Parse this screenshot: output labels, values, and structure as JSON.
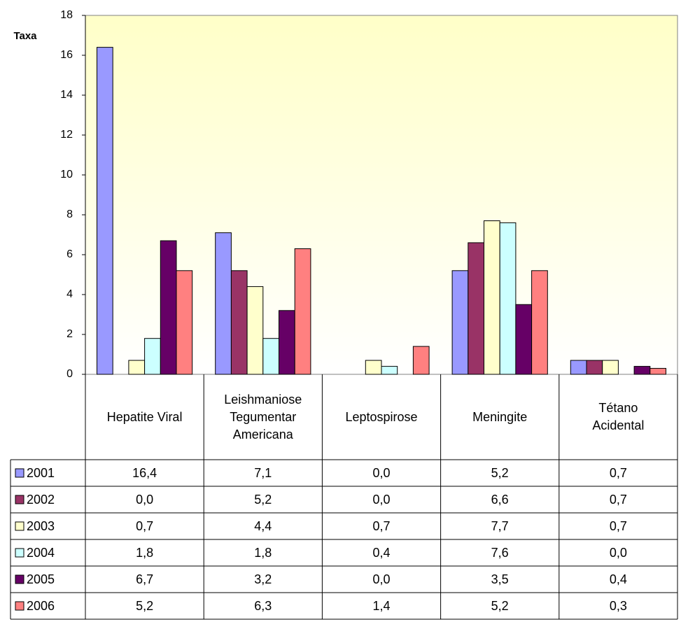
{
  "chart_data": {
    "type": "bar",
    "y_label": "Taxa",
    "categories": [
      "Hepatite Viral",
      "Leishmaniose\nTegumentar\nAmericana",
      "Leptospirose",
      "Meningite",
      "Tétano\nAcidental"
    ],
    "series": [
      {
        "name": "2001",
        "color": "#9999ff",
        "values": [
          16.4,
          7.1,
          0.0,
          5.2,
          0.7
        ],
        "value_labels": [
          "16,4",
          "7,1",
          "0,0",
          "5,2",
          "0,7"
        ]
      },
      {
        "name": "2002",
        "color": "#993366",
        "values": [
          0.0,
          5.2,
          0.0,
          6.6,
          0.7
        ],
        "value_labels": [
          "0,0",
          "5,2",
          "0,0",
          "6,6",
          "0,7"
        ]
      },
      {
        "name": "2003",
        "color": "#ffffcc",
        "values": [
          0.7,
          4.4,
          0.7,
          7.7,
          0.7
        ],
        "value_labels": [
          "0,7",
          "4,4",
          "0,7",
          "7,7",
          "0,7"
        ]
      },
      {
        "name": "2004",
        "color": "#ccffff",
        "values": [
          1.8,
          1.8,
          0.4,
          7.6,
          0.0
        ],
        "value_labels": [
          "1,8",
          "1,8",
          "0,4",
          "7,6",
          "0,0"
        ]
      },
      {
        "name": "2005",
        "color": "#660066",
        "values": [
          6.7,
          3.2,
          0.0,
          3.5,
          0.4
        ],
        "value_labels": [
          "6,7",
          "3,2",
          "0,0",
          "3,5",
          "0,4"
        ]
      },
      {
        "name": "2006",
        "color": "#ff8080",
        "values": [
          5.2,
          6.3,
          1.4,
          5.2,
          0.3
        ],
        "value_labels": [
          "5,2",
          "6,3",
          "1,4",
          "5,2",
          "0,3"
        ]
      }
    ],
    "ylim": [
      0,
      18
    ],
    "yticks": [
      0,
      2,
      4,
      6,
      8,
      10,
      12,
      14,
      16,
      18
    ],
    "grid": false
  }
}
